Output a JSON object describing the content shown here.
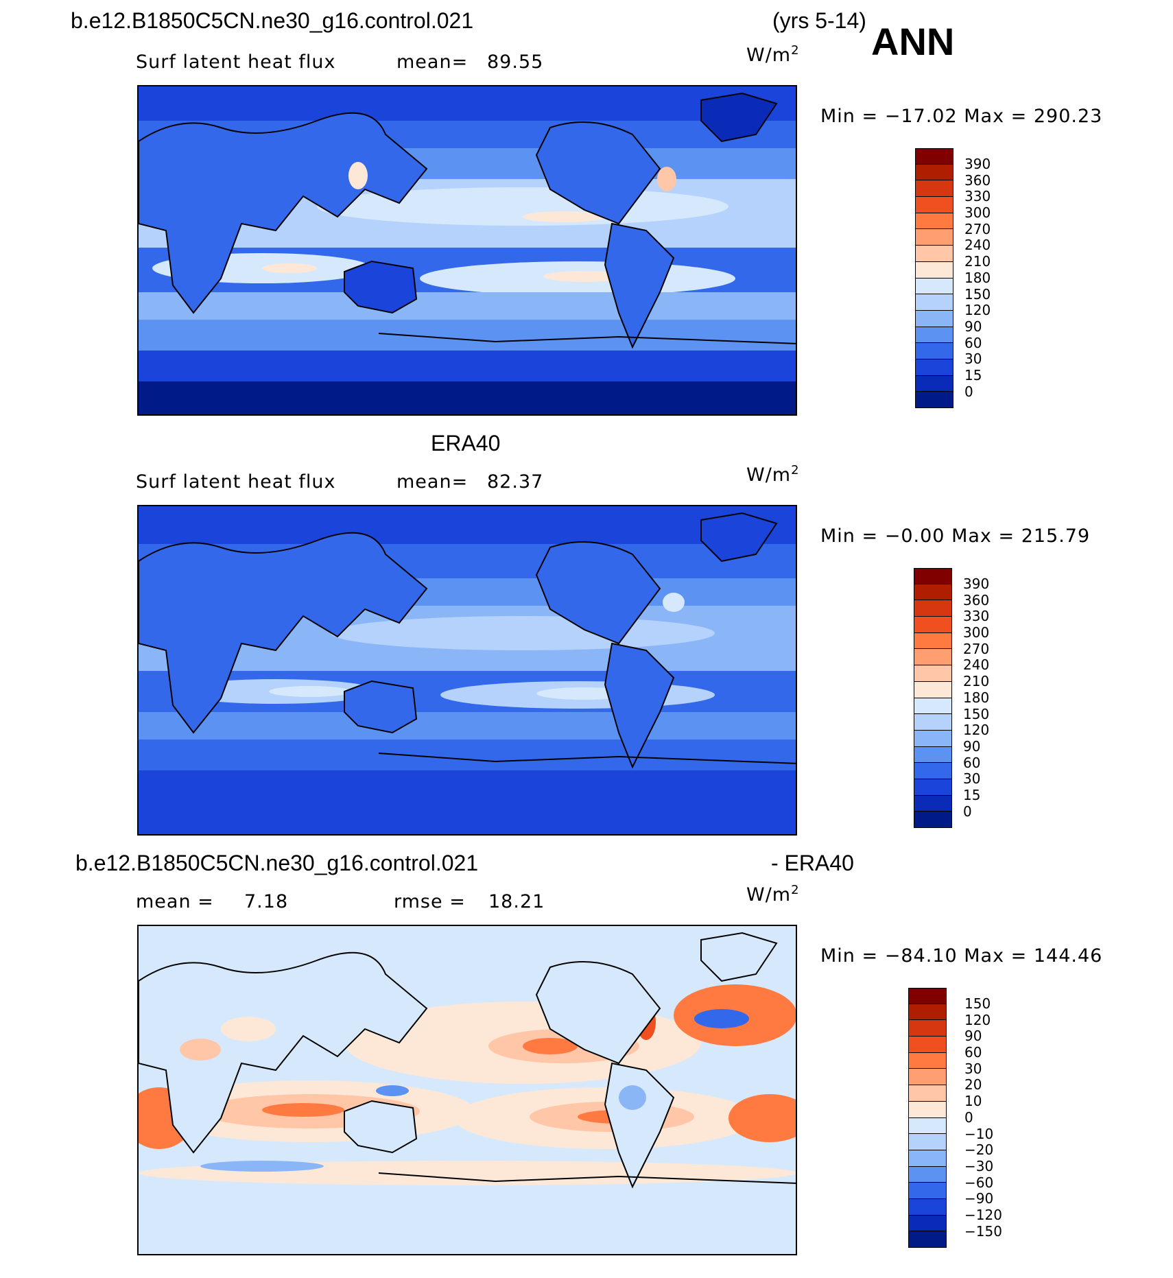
{
  "header": {
    "case_name": "b.e12.B1850C5CN.ne30_g16.control.021",
    "years": "(yrs 5-14)",
    "season": "ANN"
  },
  "panels": [
    {
      "id": "model",
      "title": "",
      "field": "Surf latent heat flux",
      "stat1_label": "mean=",
      "stat1_value": "89.55",
      "units": "W/m",
      "units_exp": "2",
      "min_label": "Min =",
      "min_value": "−17.02",
      "max_label": "Max =",
      "max_value": "290.23"
    },
    {
      "id": "obs",
      "title": "ERA40",
      "field": "Surf latent heat flux",
      "stat1_label": "mean=",
      "stat1_value": "82.37",
      "units": "W/m",
      "units_exp": "2",
      "min_label": "Min =",
      "min_value": "−0.00",
      "max_label": "Max =",
      "max_value": "215.79"
    },
    {
      "id": "diff",
      "title_left": "b.e12.B1850C5CN.ne30_g16.control.021",
      "title_right": "- ERA40",
      "stat1_label": "mean =",
      "stat1_value": "7.18",
      "stat2_label": "rmse =",
      "stat2_value": "18.21",
      "units": "W/m",
      "units_exp": "2",
      "min_label": "Min =",
      "min_value": "−84.10",
      "max_label": "Max =",
      "max_value": "144.46"
    }
  ],
  "colorbars": {
    "field": {
      "labels": [
        "390",
        "360",
        "330",
        "300",
        "270",
        "240",
        "210",
        "180",
        "150",
        "120",
        "90",
        "60",
        "30",
        "15",
        "0"
      ],
      "colors": [
        "#800000",
        "#b01e00",
        "#d63610",
        "#f05020",
        "#ff7a40",
        "#ff9e70",
        "#ffc6a8",
        "#fde8d8",
        "#d6e9fc",
        "#b4d2fb",
        "#8ab6f8",
        "#5c93f2",
        "#3468ea",
        "#1a44da",
        "#0a2ab8",
        "#001a88"
      ]
    },
    "diff": {
      "labels": [
        "150",
        "120",
        "90",
        "60",
        "30",
        "20",
        "10",
        "0",
        "−10",
        "−20",
        "−30",
        "−60",
        "−90",
        "−120",
        "−150"
      ],
      "colors": [
        "#800000",
        "#b01e00",
        "#d63610",
        "#f05020",
        "#ff7a40",
        "#ff9e70",
        "#ffc6a8",
        "#fde8d8",
        "#d6e9fc",
        "#b4d2fb",
        "#8ab6f8",
        "#5c93f2",
        "#3468ea",
        "#1a44da",
        "#0a2ab8",
        "#001a88"
      ]
    }
  }
}
